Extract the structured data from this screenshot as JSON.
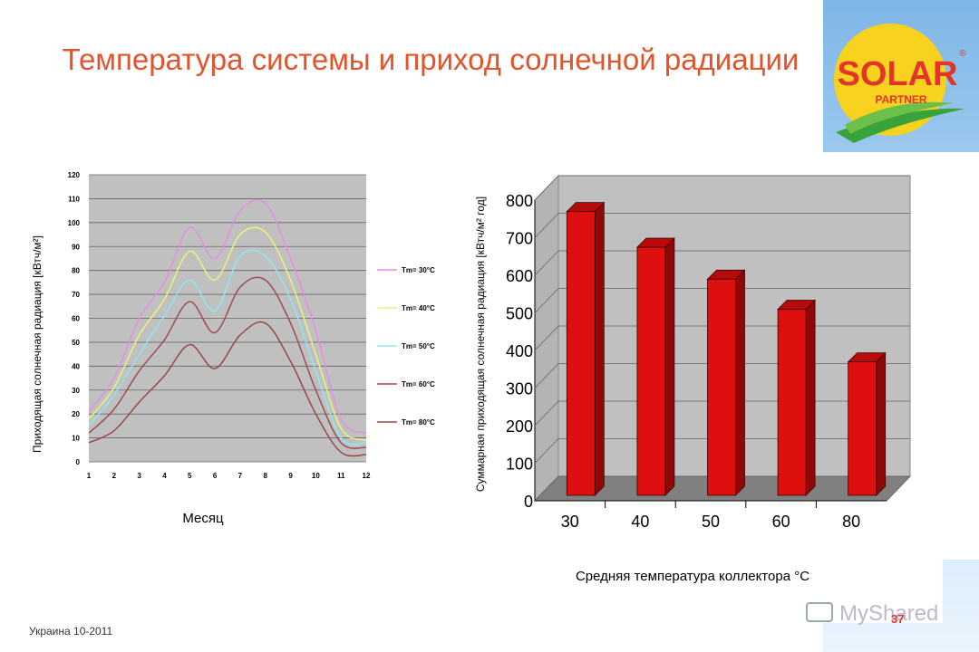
{
  "slide": {
    "title": "Температура системы и приход солнечной радиации",
    "footer": "Украина 10-2011",
    "page_number": "37",
    "logo_text": "SOLAR",
    "logo_subtext": "PARTNER",
    "logo_registered": "®",
    "watermark_text": "MyShared"
  },
  "colors": {
    "title": "#e2542b",
    "bar_front": "#dd0f0f",
    "bar_side": "#8f0707",
    "bar_top": "#b70a0a",
    "plot_bg": "#c0c0c0"
  },
  "chart_data": [
    {
      "type": "line",
      "ylabel": "Приходящая солнечная радиация [кВтч/м²]",
      "xlabel": "Месяц",
      "x": [
        1,
        2,
        3,
        4,
        5,
        6,
        7,
        8,
        9,
        10,
        11,
        12
      ],
      "ylim": [
        0,
        120
      ],
      "yticks": [
        0,
        10,
        20,
        30,
        40,
        50,
        60,
        70,
        80,
        90,
        100,
        110,
        120
      ],
      "grid": true,
      "legend_position": "right",
      "series": [
        {
          "name": "Tm= 30°C",
          "color": "#e58ce5",
          "values": [
            21,
            35,
            60,
            75,
            98,
            85,
            105,
            108,
            85,
            55,
            18,
            12
          ]
        },
        {
          "name": "Tm= 40°C",
          "color": "#f0f07a",
          "values": [
            18,
            31,
            53,
            68,
            88,
            76,
            95,
            96,
            76,
            45,
            14,
            9
          ]
        },
        {
          "name": "Tm= 50°C",
          "color": "#8de8f2",
          "values": [
            15,
            28,
            45,
            61,
            76,
            63,
            86,
            86,
            68,
            38,
            10,
            8
          ]
        },
        {
          "name": "Tm= 60°C",
          "color": "#a04a55",
          "values": [
            12,
            22,
            38,
            51,
            67,
            54,
            73,
            76,
            58,
            30,
            8,
            6
          ]
        },
        {
          "name": "Tm= 80°C",
          "color": "#9a4646",
          "values": [
            8,
            13,
            25,
            36,
            49,
            39,
            53,
            58,
            42,
            20,
            4,
            3
          ]
        }
      ]
    },
    {
      "type": "bar",
      "ylabel": "Суммарная приходящая солнечная радиация [кВтч/м² год]",
      "xlabel": "Средняя температура коллектора °C",
      "categories": [
        "30",
        "40",
        "50",
        "60",
        "80"
      ],
      "values": [
        760,
        665,
        580,
        500,
        360
      ],
      "ylim": [
        0,
        800
      ],
      "yticks": [
        0,
        100,
        200,
        300,
        400,
        500,
        600,
        700,
        800
      ],
      "grid": true
    }
  ]
}
